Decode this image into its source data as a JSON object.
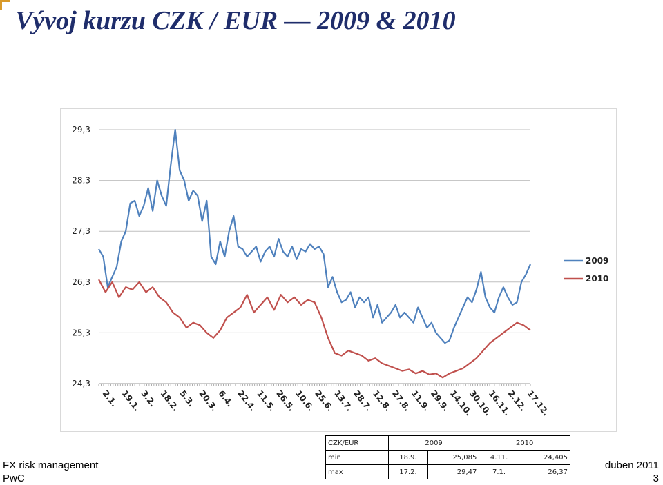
{
  "title": "Vývoj kurzu CZK / EUR — 2009 & 2010",
  "footer": {
    "left_line1": "FX risk management",
    "left_line2": "PwC",
    "right_line1": "duben 2011",
    "right_line2": "3"
  },
  "colors": {
    "series_2009": "#4f81bd",
    "series_2010": "#c0504d",
    "title": "#1f2d6b",
    "grid": "#bfbfbf"
  },
  "table": {
    "header": [
      "CZK/EUR",
      "2009",
      "",
      "2010",
      ""
    ],
    "rows": [
      [
        "min",
        "18.9.",
        "25,085",
        "4.11.",
        "24,405"
      ],
      [
        "max",
        "17.2.",
        "29,47",
        "7.1.",
        "26,37"
      ]
    ]
  },
  "chart_data": {
    "type": "line",
    "ylim": [
      24.3,
      29.3
    ],
    "yticks": [
      "24,3",
      "25,3",
      "26,3",
      "27,3",
      "28,3",
      "29,3"
    ],
    "ytick_values": [
      24.3,
      25.3,
      26.3,
      27.3,
      28.3,
      29.3
    ],
    "grid": true,
    "legend": "right",
    "x_tick_labels": [
      "2.1.",
      "19.1.",
      "3.2.",
      "18.2.",
      "5.3.",
      "20.3.",
      "6.4.",
      "22.4.",
      "11.5.",
      "26.5.",
      "10.6.",
      "25.6.",
      "13.7.",
      "28.7.",
      "12.8.",
      "27.8.",
      "11.9.",
      "29.9.",
      "14.10.",
      "30.10.",
      "16.11.",
      "2.12.",
      "17.12."
    ],
    "series": [
      {
        "name": "2009",
        "values": [
          26.95,
          26.8,
          26.2,
          26.4,
          26.6,
          27.1,
          27.3,
          27.85,
          27.9,
          27.6,
          27.8,
          28.15,
          27.7,
          28.3,
          28.0,
          27.8,
          28.6,
          29.3,
          28.5,
          28.3,
          27.9,
          28.1,
          28.0,
          27.5,
          27.9,
          26.8,
          26.65,
          27.1,
          26.8,
          27.3,
          27.6,
          27.0,
          26.95,
          26.8,
          26.9,
          27.0,
          26.7,
          26.9,
          27.0,
          26.8,
          27.15,
          26.9,
          26.8,
          27.0,
          26.75,
          26.95,
          26.9,
          27.05,
          26.95,
          27.0,
          26.85,
          26.2,
          26.4,
          26.1,
          25.9,
          25.95,
          26.1,
          25.8,
          26.0,
          25.9,
          26.0,
          25.6,
          25.85,
          25.5,
          25.6,
          25.7,
          25.85,
          25.6,
          25.7,
          25.6,
          25.5,
          25.8,
          25.6,
          25.4,
          25.5,
          25.3,
          25.2,
          25.1,
          25.15,
          25.4,
          25.6,
          25.8,
          26.0,
          25.9,
          26.15,
          26.5,
          26.0,
          25.8,
          25.7,
          26.0,
          26.2,
          26.0,
          25.85,
          25.9,
          26.3,
          26.45,
          26.65
        ],
        "unit": "CZK"
      },
      {
        "name": "2010",
        "values": [
          26.35,
          26.1,
          26.3,
          26.0,
          26.2,
          26.15,
          26.3,
          26.1,
          26.2,
          26.0,
          25.9,
          25.7,
          25.6,
          25.4,
          25.5,
          25.45,
          25.3,
          25.2,
          25.35,
          25.6,
          25.7,
          25.8,
          26.05,
          25.7,
          25.85,
          26.0,
          25.75,
          26.05,
          25.9,
          26.0,
          25.85,
          25.95,
          25.9,
          25.6,
          25.2,
          24.9,
          24.85,
          24.95,
          24.9,
          24.85,
          24.75,
          24.8,
          24.7,
          24.65,
          24.6,
          24.55,
          24.58,
          24.5,
          24.55,
          24.48,
          24.5,
          24.42,
          24.5,
          24.55,
          24.6,
          24.7,
          24.8,
          24.95,
          25.1,
          25.2,
          25.3,
          25.4,
          25.5,
          25.45,
          25.35
        ]
      }
    ]
  }
}
